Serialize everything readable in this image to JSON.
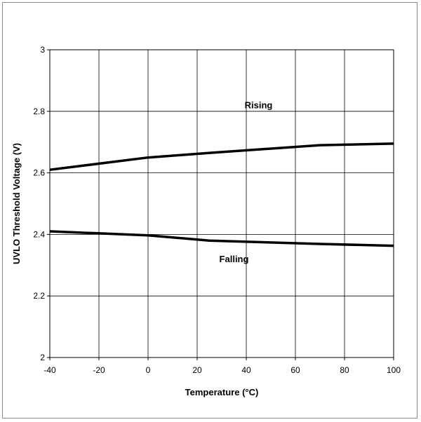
{
  "chart_data": {
    "type": "line",
    "xlabel": "Temperature (°C)",
    "ylabel": "UVLO Threshold Voltage (V)",
    "xlim": [
      -40,
      100
    ],
    "ylim": [
      2,
      3
    ],
    "xticks": [
      -40,
      -20,
      0,
      20,
      40,
      60,
      80,
      100
    ],
    "yticks": [
      2,
      2.2,
      2.4,
      2.6,
      2.8,
      3
    ],
    "ytick_labels": [
      "2",
      "2.2",
      "2.4",
      "2.6",
      "2.8",
      "3"
    ],
    "grid": true,
    "series": [
      {
        "name": "Rising",
        "x": [
          -40,
          0,
          25,
          70,
          100
        ],
        "y": [
          2.61,
          2.65,
          2.665,
          2.69,
          2.695
        ]
      },
      {
        "name": "Falling",
        "x": [
          -40,
          0,
          25,
          70,
          100
        ],
        "y": [
          2.41,
          2.397,
          2.38,
          2.369,
          2.363
        ]
      }
    ],
    "line_color": "#000000"
  }
}
